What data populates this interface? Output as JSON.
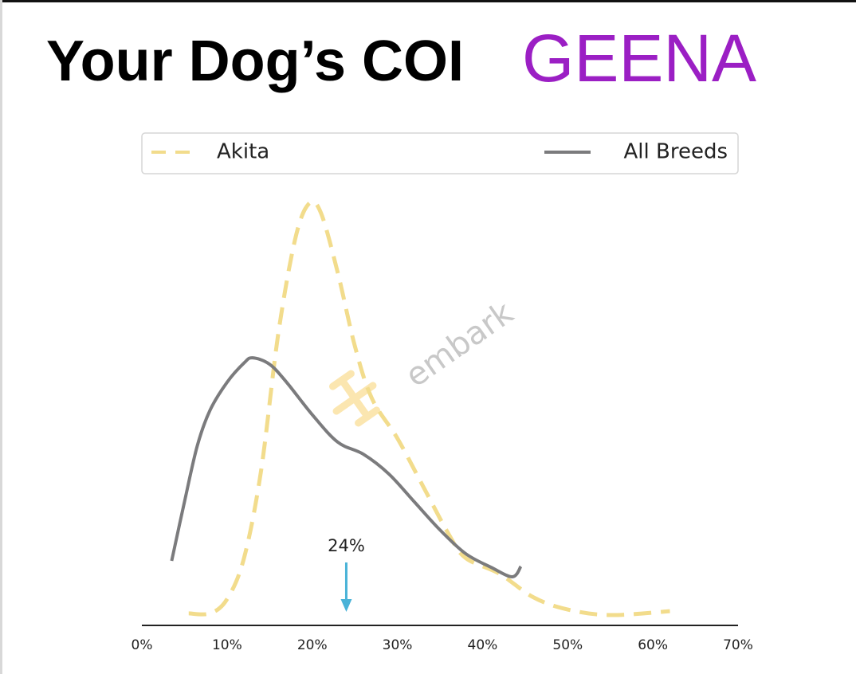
{
  "chart_data": {
    "type": "line",
    "title": "Your Dog’s COI",
    "subtitle": "GEENA",
    "watermark": "embark",
    "xlim": [
      0,
      70
    ],
    "xticks": [
      {
        "value": 0,
        "label": "0%"
      },
      {
        "value": 10,
        "label": "10%"
      },
      {
        "value": 20,
        "label": "20%"
      },
      {
        "value": 30,
        "label": "30%"
      },
      {
        "value": 40,
        "label": "40%"
      },
      {
        "value": 50,
        "label": "50%"
      },
      {
        "value": 60,
        "label": "60%"
      },
      {
        "value": 70,
        "label": "70%"
      }
    ],
    "ylim": [
      0,
      100
    ],
    "marker": {
      "value": 24,
      "label": "24%",
      "color": "#4ab3d8"
    },
    "series": [
      {
        "name": "Akita",
        "color": "#f2dc8c",
        "dashed": true,
        "x": [
          5.5,
          8,
          10,
          12,
          14,
          16,
          18,
          19.6,
          21,
          23,
          25,
          27,
          30,
          33,
          36,
          38,
          42,
          46,
          50,
          55,
          62
        ],
        "values": [
          2.8,
          2.8,
          6.1,
          15.7,
          36,
          67.6,
          89.8,
          98,
          96,
          82,
          65,
          52.8,
          43.5,
          32.4,
          21.3,
          15.7,
          12,
          6.5,
          3.7,
          2.4,
          3.3
        ]
      },
      {
        "name": "All Breeds",
        "color": "#7b7b7d",
        "dashed": false,
        "x": [
          3.5,
          5,
          6.5,
          8,
          10,
          12,
          13,
          15,
          17,
          20,
          23,
          26,
          29,
          32,
          35,
          38,
          41,
          43.5,
          44.5
        ],
        "values": [
          15,
          28.7,
          41.7,
          50,
          56.5,
          61,
          62.2,
          60.7,
          56.5,
          49,
          42.6,
          39.8,
          35.2,
          28.7,
          22.2,
          16.7,
          13.5,
          11.3,
          13.7
        ]
      }
    ]
  }
}
